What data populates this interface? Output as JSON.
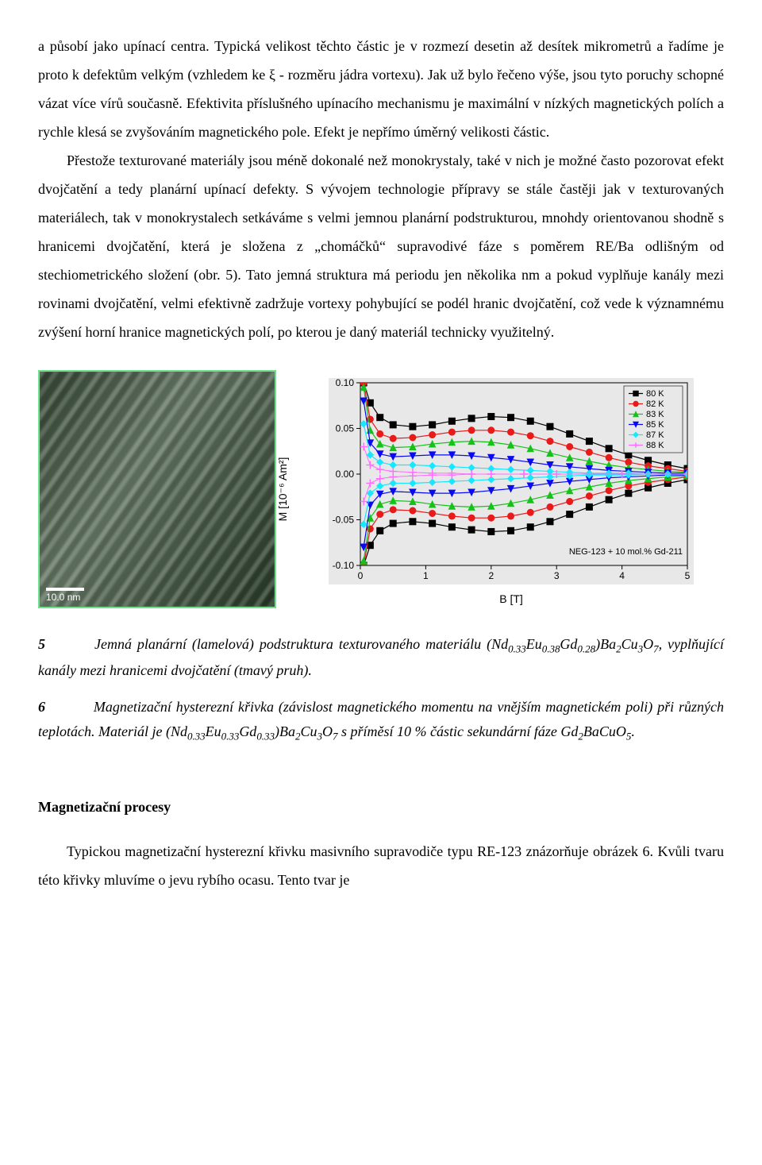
{
  "body": {
    "p1": "a působí jako upínací centra. Typická velikost těchto částic je v rozmezí desetin až desítek mikrometrů a řadíme je proto k defektům velkým (vzhledem ke ξ - rozměru jádra vortexu). Jak už bylo řečeno výše, jsou tyto poruchy schopné vázat více vírů současně. Efektivita příslušného upínacího mechanismu je maximální v nízkých magnetických polích a rychle klesá se zvyšováním magnetického pole. Efekt je nepřímo úměrný velikosti částic.",
    "p2": "Přestože texturované materiály jsou méně dokonalé než monokrystaly, také v nich je možné často pozorovat efekt dvojčatění a tedy planární upínací defekty. S vývojem technologie přípravy se stále častěji jak v texturovaných materiálech, tak v monokrystalech setkáváme s velmi jemnou planární podstrukturou, mnohdy orientovanou shodně s hranicemi dvojčatění, která je složena z „chomáčků“ supravodivé fáze s poměrem RE/Ba odlišným od stechiometrického složení (obr. 5). Tato jemná struktura má periodu jen několika nm a pokud vyplňuje kanály mezi rovinami dvojčatění, velmi efektivně zadržuje vortexy pohybující se podél hranic dvojčatění, což vede k významnému zvýšení horní hranice magnetických polí, po kterou je daný materiál technicky využitelný."
  },
  "micrograph": {
    "scale_label": "10.0 nm"
  },
  "chart": {
    "type": "line-scatter",
    "xlabel": "B  [T]",
    "ylabel": "M [10⁻⁶ Am²]",
    "annotation": "NEG-123 + 10 mol.% Gd-211",
    "background_color": "#e8e8e8",
    "axis_color": "#000000",
    "axis_font_family": "Arial",
    "tick_fontsize": 12,
    "label_fontsize": 14,
    "legend_fontsize": 11,
    "annotation_fontsize": 11,
    "xlim": [
      0,
      5
    ],
    "ylim": [
      -0.1,
      0.1
    ],
    "xticks": [
      0,
      1,
      2,
      3,
      4,
      5
    ],
    "yticks": [
      -0.1,
      -0.05,
      0.0,
      0.05,
      0.1
    ],
    "xtick_labels": [
      "0",
      "1",
      "2",
      "3",
      "4",
      "5"
    ],
    "ytick_labels": [
      "-0.10",
      "-0.05",
      "0.00",
      "0.05",
      "0.10"
    ],
    "legend": {
      "position": "top-right-inside",
      "items": [
        {
          "label": "80 K",
          "color": "#000000",
          "marker": "square"
        },
        {
          "label": "82 K",
          "color": "#e81a1a",
          "marker": "circle"
        },
        {
          "label": "83 K",
          "color": "#16c21a",
          "marker": "triangle-up"
        },
        {
          "label": "85 K",
          "color": "#0a0af0",
          "marker": "triangle-down"
        },
        {
          "label": "87 K",
          "color": "#16e8ff",
          "marker": "diamond"
        },
        {
          "label": "88 K",
          "color": "#ff6cff",
          "marker": "plus"
        }
      ]
    },
    "series": [
      {
        "name": "80 K",
        "color": "#000000",
        "marker": "square",
        "line_width": 1.2,
        "marker_size": 4,
        "upper": [
          [
            0.05,
            0.1
          ],
          [
            0.15,
            0.078
          ],
          [
            0.3,
            0.062
          ],
          [
            0.5,
            0.054
          ],
          [
            0.8,
            0.052
          ],
          [
            1.1,
            0.054
          ],
          [
            1.4,
            0.058
          ],
          [
            1.7,
            0.061
          ],
          [
            2.0,
            0.063
          ],
          [
            2.3,
            0.062
          ],
          [
            2.6,
            0.058
          ],
          [
            2.9,
            0.052
          ],
          [
            3.2,
            0.044
          ],
          [
            3.5,
            0.036
          ],
          [
            3.8,
            0.028
          ],
          [
            4.1,
            0.021
          ],
          [
            4.4,
            0.015
          ],
          [
            4.7,
            0.01
          ],
          [
            5.0,
            0.006
          ]
        ],
        "lower": [
          [
            0.05,
            -0.1
          ],
          [
            0.15,
            -0.078
          ],
          [
            0.3,
            -0.062
          ],
          [
            0.5,
            -0.054
          ],
          [
            0.8,
            -0.052
          ],
          [
            1.1,
            -0.054
          ],
          [
            1.4,
            -0.058
          ],
          [
            1.7,
            -0.061
          ],
          [
            2.0,
            -0.063
          ],
          [
            2.3,
            -0.062
          ],
          [
            2.6,
            -0.058
          ],
          [
            2.9,
            -0.052
          ],
          [
            3.2,
            -0.044
          ],
          [
            3.5,
            -0.036
          ],
          [
            3.8,
            -0.028
          ],
          [
            4.1,
            -0.021
          ],
          [
            4.4,
            -0.015
          ],
          [
            4.7,
            -0.01
          ],
          [
            5.0,
            -0.006
          ]
        ]
      },
      {
        "name": "82 K",
        "color": "#e81a1a",
        "marker": "circle",
        "line_width": 1.2,
        "marker_size": 4,
        "upper": [
          [
            0.05,
            0.1
          ],
          [
            0.15,
            0.06
          ],
          [
            0.3,
            0.044
          ],
          [
            0.5,
            0.039
          ],
          [
            0.8,
            0.04
          ],
          [
            1.1,
            0.043
          ],
          [
            1.4,
            0.046
          ],
          [
            1.7,
            0.048
          ],
          [
            2.0,
            0.048
          ],
          [
            2.3,
            0.046
          ],
          [
            2.6,
            0.042
          ],
          [
            2.9,
            0.036
          ],
          [
            3.2,
            0.03
          ],
          [
            3.5,
            0.024
          ],
          [
            3.8,
            0.018
          ],
          [
            4.1,
            0.013
          ],
          [
            4.4,
            0.009
          ],
          [
            4.7,
            0.006
          ],
          [
            5.0,
            0.003
          ]
        ],
        "lower": [
          [
            0.05,
            -0.1
          ],
          [
            0.15,
            -0.06
          ],
          [
            0.3,
            -0.044
          ],
          [
            0.5,
            -0.039
          ],
          [
            0.8,
            -0.04
          ],
          [
            1.1,
            -0.043
          ],
          [
            1.4,
            -0.046
          ],
          [
            1.7,
            -0.048
          ],
          [
            2.0,
            -0.048
          ],
          [
            2.3,
            -0.046
          ],
          [
            2.6,
            -0.042
          ],
          [
            2.9,
            -0.036
          ],
          [
            3.2,
            -0.03
          ],
          [
            3.5,
            -0.024
          ],
          [
            3.8,
            -0.018
          ],
          [
            4.1,
            -0.013
          ],
          [
            4.4,
            -0.009
          ],
          [
            4.7,
            -0.006
          ],
          [
            5.0,
            -0.003
          ]
        ]
      },
      {
        "name": "83 K",
        "color": "#16c21a",
        "marker": "triangle-up",
        "line_width": 1.2,
        "marker_size": 4,
        "upper": [
          [
            0.05,
            0.095
          ],
          [
            0.15,
            0.048
          ],
          [
            0.3,
            0.033
          ],
          [
            0.5,
            0.029
          ],
          [
            0.8,
            0.03
          ],
          [
            1.1,
            0.033
          ],
          [
            1.4,
            0.035
          ],
          [
            1.7,
            0.036
          ],
          [
            2.0,
            0.035
          ],
          [
            2.3,
            0.032
          ],
          [
            2.6,
            0.028
          ],
          [
            2.9,
            0.023
          ],
          [
            3.2,
            0.018
          ],
          [
            3.5,
            0.014
          ],
          [
            3.8,
            0.01
          ],
          [
            4.1,
            0.007
          ],
          [
            4.4,
            0.005
          ],
          [
            4.7,
            0.003
          ],
          [
            5.0,
            0.002
          ]
        ],
        "lower": [
          [
            0.05,
            -0.095
          ],
          [
            0.15,
            -0.048
          ],
          [
            0.3,
            -0.033
          ],
          [
            0.5,
            -0.029
          ],
          [
            0.8,
            -0.03
          ],
          [
            1.1,
            -0.033
          ],
          [
            1.4,
            -0.035
          ],
          [
            1.7,
            -0.036
          ],
          [
            2.0,
            -0.035
          ],
          [
            2.3,
            -0.032
          ],
          [
            2.6,
            -0.028
          ],
          [
            2.9,
            -0.023
          ],
          [
            3.2,
            -0.018
          ],
          [
            3.5,
            -0.014
          ],
          [
            3.8,
            -0.01
          ],
          [
            4.1,
            -0.007
          ],
          [
            4.4,
            -0.005
          ],
          [
            4.7,
            -0.003
          ],
          [
            5.0,
            -0.002
          ]
        ]
      },
      {
        "name": "85 K",
        "color": "#0a0af0",
        "marker": "triangle-down",
        "line_width": 1.2,
        "marker_size": 4,
        "upper": [
          [
            0.05,
            0.08
          ],
          [
            0.15,
            0.034
          ],
          [
            0.3,
            0.022
          ],
          [
            0.5,
            0.019
          ],
          [
            0.8,
            0.02
          ],
          [
            1.1,
            0.021
          ],
          [
            1.4,
            0.021
          ],
          [
            1.7,
            0.02
          ],
          [
            2.0,
            0.018
          ],
          [
            2.3,
            0.016
          ],
          [
            2.6,
            0.013
          ],
          [
            2.9,
            0.01
          ],
          [
            3.2,
            0.008
          ],
          [
            3.5,
            0.006
          ],
          [
            3.8,
            0.004
          ],
          [
            4.1,
            0.003
          ],
          [
            4.4,
            0.002
          ],
          [
            4.7,
            0.001
          ],
          [
            5.0,
            0.001
          ]
        ],
        "lower": [
          [
            0.05,
            -0.08
          ],
          [
            0.15,
            -0.034
          ],
          [
            0.3,
            -0.022
          ],
          [
            0.5,
            -0.019
          ],
          [
            0.8,
            -0.02
          ],
          [
            1.1,
            -0.021
          ],
          [
            1.4,
            -0.021
          ],
          [
            1.7,
            -0.02
          ],
          [
            2.0,
            -0.018
          ],
          [
            2.3,
            -0.016
          ],
          [
            2.6,
            -0.013
          ],
          [
            2.9,
            -0.01
          ],
          [
            3.2,
            -0.008
          ],
          [
            3.5,
            -0.006
          ],
          [
            3.8,
            -0.004
          ],
          [
            4.1,
            -0.003
          ],
          [
            4.4,
            -0.002
          ],
          [
            4.7,
            -0.001
          ],
          [
            5.0,
            -0.001
          ]
        ]
      },
      {
        "name": "87 K",
        "color": "#16e8ff",
        "marker": "diamond",
        "line_width": 1.2,
        "marker_size": 4,
        "upper": [
          [
            0.05,
            0.055
          ],
          [
            0.15,
            0.021
          ],
          [
            0.3,
            0.013
          ],
          [
            0.5,
            0.01
          ],
          [
            0.8,
            0.01
          ],
          [
            1.1,
            0.009
          ],
          [
            1.4,
            0.008
          ],
          [
            1.7,
            0.007
          ],
          [
            2.0,
            0.006
          ],
          [
            2.3,
            0.005
          ],
          [
            2.6,
            0.004
          ],
          [
            2.9,
            0.003
          ],
          [
            3.2,
            0.002
          ],
          [
            3.5,
            0.001
          ],
          [
            3.8,
            0.001
          ],
          [
            4.1,
            0.001
          ],
          [
            4.4,
            0.0
          ],
          [
            4.7,
            0.0
          ],
          [
            5.0,
            0.0
          ]
        ],
        "lower": [
          [
            0.05,
            -0.055
          ],
          [
            0.15,
            -0.021
          ],
          [
            0.3,
            -0.013
          ],
          [
            0.5,
            -0.01
          ],
          [
            0.8,
            -0.01
          ],
          [
            1.1,
            -0.009
          ],
          [
            1.4,
            -0.008
          ],
          [
            1.7,
            -0.007
          ],
          [
            2.0,
            -0.006
          ],
          [
            2.3,
            -0.005
          ],
          [
            2.6,
            -0.004
          ],
          [
            2.9,
            -0.003
          ],
          [
            3.2,
            -0.002
          ],
          [
            3.5,
            -0.001
          ],
          [
            3.8,
            -0.001
          ],
          [
            4.1,
            -0.001
          ],
          [
            4.4,
            0.0
          ],
          [
            4.7,
            0.0
          ],
          [
            5.0,
            0.0
          ]
        ]
      },
      {
        "name": "88 K",
        "color": "#ff6cff",
        "marker": "plus",
        "line_width": 1.0,
        "marker_size": 5,
        "upper": [
          [
            0.05,
            0.03
          ],
          [
            0.15,
            0.01
          ],
          [
            0.3,
            0.005
          ],
          [
            0.5,
            0.003
          ],
          [
            0.8,
            0.002
          ],
          [
            1.1,
            0.001
          ],
          [
            1.4,
            0.001
          ],
          [
            1.7,
            0.0
          ],
          [
            2.0,
            0.0
          ],
          [
            2.5,
            0.0
          ],
          [
            3.0,
            0.0
          ],
          [
            4.0,
            0.0
          ],
          [
            5.0,
            0.0
          ]
        ],
        "lower": [
          [
            0.05,
            -0.03
          ],
          [
            0.15,
            -0.01
          ],
          [
            0.3,
            -0.005
          ],
          [
            0.5,
            -0.003
          ],
          [
            0.8,
            -0.002
          ],
          [
            1.1,
            -0.001
          ],
          [
            1.4,
            -0.001
          ],
          [
            1.7,
            0.0
          ],
          [
            2.0,
            0.0
          ],
          [
            2.5,
            0.0
          ],
          [
            3.0,
            0.0
          ],
          [
            4.0,
            0.0
          ],
          [
            5.0,
            0.0
          ]
        ]
      }
    ]
  },
  "captions": {
    "c5_num": "5",
    "c5_a": "Jemná planární (lamelová) podstruktura texturovaného materiálu (Nd",
    "c5_s1": "0.33",
    "c5_b": "Eu",
    "c5_s2": "0.38",
    "c5_c": "Gd",
    "c5_s3": "0.28",
    "c5_d": ")Ba",
    "c5_s4": "2",
    "c5_e": "Cu",
    "c5_s5": "3",
    "c5_f": "O",
    "c5_s6": "7",
    "c5_g": ", vyplňující kanály mezi hranicemi dvojčatění (tmavý pruh).",
    "c6_num": "6",
    "c6_a": "Magnetizační hysterezní křivka (závislost magnetického momentu na vnějším magnetickém poli) při různých  teplotách. Materiál je (Nd",
    "c6_s1": "0.33",
    "c6_b": "Eu",
    "c6_s2": "0.33",
    "c6_c": "Gd",
    "c6_s3": "0.33",
    "c6_d": ")Ba",
    "c6_s4": "2",
    "c6_e": "Cu",
    "c6_s5": "3",
    "c6_f": "O",
    "c6_s6": "7",
    "c6_g": " s příměsí 10 % částic sekundární fáze Gd",
    "c6_s7": "2",
    "c6_h": "BaCuO",
    "c6_s8": "5",
    "c6_i": "."
  },
  "section": {
    "heading": "Magnetizační procesy",
    "p": "Typickou magnetizační hysterezní křivku masivního supravodiče typu RE-123 znázorňuje obrázek 6. Kvůli tvaru této křivky mluvíme o jevu rybího ocasu. Tento tvar je"
  }
}
